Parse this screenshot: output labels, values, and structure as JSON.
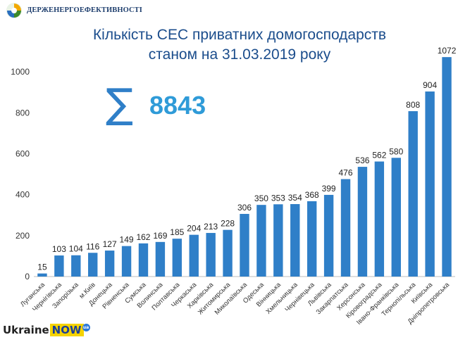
{
  "header": {
    "org_name": "ДЕРЖЕНЕРГОЕФЕКТИВНОСТІ"
  },
  "total": {
    "symbol": "∑",
    "value": "8843"
  },
  "footer": {
    "brand_word": "Ukraine",
    "brand_now": "NOW",
    "brand_badge": "ua"
  },
  "colors": {
    "bar": "#2f7fc8",
    "title": "#1b4d8c",
    "total": "#2f9bd8"
  },
  "chart_data": {
    "type": "bar",
    "title": [
      "Кількість СЕС приватних домогосподарств",
      "станом на 31.03.2019 року"
    ],
    "xlabel": "",
    "ylabel": "",
    "ylim": [
      0,
      1100
    ],
    "yticks": [
      0,
      200,
      400,
      600,
      800,
      1000
    ],
    "grid": false,
    "categories": [
      "Луганська",
      "Чернігівська",
      "Запорізька",
      "м.Київ",
      "Донецька",
      "Рівненська",
      "Сумська",
      "Волинська",
      "Полтавська",
      "Черкаська",
      "Харківська",
      "Житомирська",
      "Миколаївська",
      "Одеська",
      "Вінницька",
      "Хмельницька",
      "Чернівецька",
      "Львівська",
      "Закарпатська",
      "Херсонська",
      "Кіровоградська",
      "Івано-Франківська",
      "Тернопільська",
      "Київська",
      "Дніпропетровська"
    ],
    "values": [
      15,
      103,
      104,
      116,
      127,
      149,
      162,
      169,
      185,
      204,
      213,
      228,
      306,
      350,
      353,
      354,
      368,
      399,
      476,
      536,
      562,
      580,
      808,
      904,
      1072
    ]
  }
}
